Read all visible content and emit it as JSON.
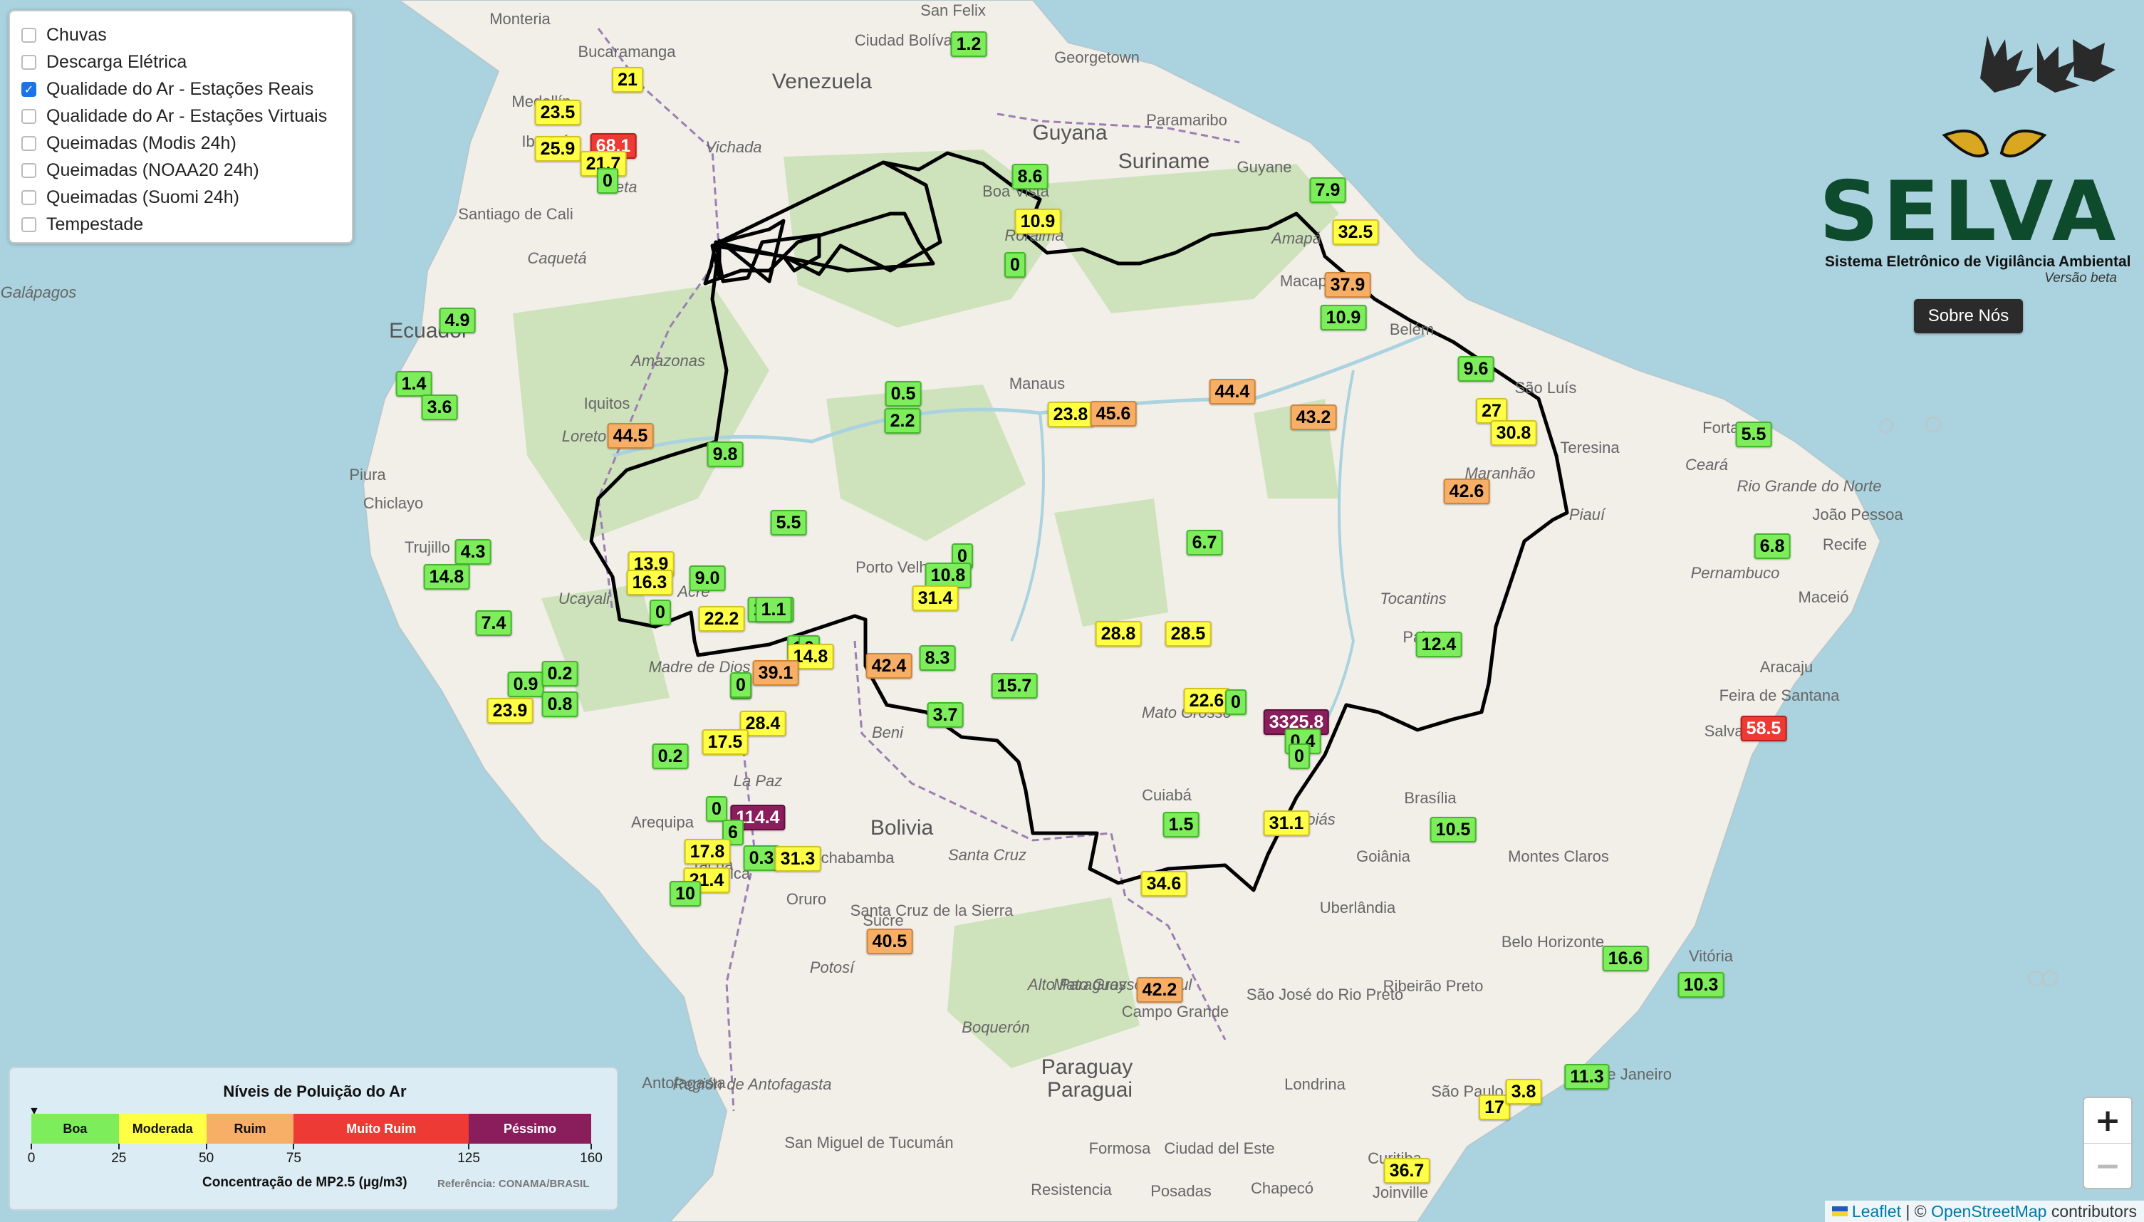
{
  "layers": [
    {
      "label": "Chuvas",
      "checked": false
    },
    {
      "label": "Descarga Elétrica",
      "checked": false
    },
    {
      "label": "Qualidade do Ar - Estações Reais",
      "checked": true
    },
    {
      "label": "Qualidade do Ar - Estações Virtuais",
      "checked": false
    },
    {
      "label": "Queimadas (Modis 24h)",
      "checked": false
    },
    {
      "label": "Queimadas (NOAA20 24h)",
      "checked": false
    },
    {
      "label": "Queimadas (Suomi 24h)",
      "checked": false
    },
    {
      "label": "Tempestade",
      "checked": false
    }
  ],
  "logo": {
    "name": "SELVA",
    "subtitle": "Sistema Eletrônico de Vigilância Ambiental",
    "version": "Versão beta",
    "icon": "selva-owl-leaves-logo"
  },
  "sobre_label": "Sobre Nós",
  "legend": {
    "title": "Níveis de Poluição do Ar",
    "categories": [
      {
        "label": "Boa",
        "color": "#7ded5c",
        "min": 0,
        "max": 25
      },
      {
        "label": "Moderada",
        "color": "#ffff45",
        "min": 25,
        "max": 50
      },
      {
        "label": "Ruim",
        "color": "#f7ae66",
        "min": 50,
        "max": 75
      },
      {
        "label": "Muito Ruim",
        "color": "#ee3a35",
        "min": 75,
        "max": 125
      },
      {
        "label": "Péssimo",
        "color": "#8a1d5c",
        "min": 125,
        "max": 160
      }
    ],
    "ticks": [
      "0",
      "25",
      "50",
      "75",
      "125",
      "160"
    ],
    "unit": "Concentração de MP2.5 (µg/m3)",
    "reference": "Referência: CONAMA/BRASIL"
  },
  "zoom": {
    "in": "+",
    "out": "−"
  },
  "attribution": {
    "leaflet": "Leaflet",
    "sep": " | © ",
    "osm": "OpenStreetMap",
    "suffix": " contributors"
  },
  "place_labels": [
    "Monteria",
    "San Felix",
    "Ciudad Bolívar",
    "Georgetown",
    "Venezuela",
    "Guyana",
    "Paramaribo",
    "Suriname",
    "Guyane",
    "Bucaramanga",
    "Medellín",
    "Ibagué",
    "Santiago de Cali",
    "Boa Vista",
    "Roraima",
    "Amapá",
    "Macapá",
    "Belém",
    "São Luís",
    "Fortaleza",
    "Teresina",
    "Ceará",
    "Maranhão",
    "Piauí",
    "Rio Grande do Norte",
    "João Pessoa",
    "Recife",
    "Pernambuco",
    "Maceió",
    "Aracaju",
    "Feira de Santana",
    "Salvador",
    "Caquetá",
    "Amazonas",
    "Ecuador",
    "Iquitos",
    "Loreto",
    "Manaus",
    "Piura",
    "Chiclayo",
    "Trujillo",
    "Ucayali",
    "Acre",
    "Porto Velho",
    "Madre de Dios",
    "Tocantins",
    "Palmas",
    "Mato Grosso",
    "Cuiabá",
    "Beni",
    "La Paz",
    "Arequipa",
    "Bolivia",
    "Santa Cruz",
    "Cochabamba",
    "Oruro",
    "Santa Cruz de la Sierra",
    "Sucre",
    "Potosí",
    "Brasília",
    "Goiás",
    "Goiânia",
    "Montes Claros",
    "Uberlândia",
    "Belo Horizonte",
    "Vitória",
    "Ribeirão Preto",
    "São José do Rio Preto",
    "Campo Grande",
    "Mato Grosso do Sul",
    "Alto Paraguay",
    "Boquerón",
    "Paraguay",
    "Paraguai",
    "Londrina",
    "Curitiba",
    "São Paulo",
    "Rio de Janeiro",
    "Joinville",
    "Antofagasta",
    "Región de Antofagasta",
    "San Miguel de Tucumán",
    "Formosa",
    "Ciudad del Este",
    "Resistencia",
    "Posadas",
    "Galápagos",
    "Chapecó",
    "Vichada",
    "Meta",
    "Tacna",
    "Arica"
  ],
  "stations": [
    {
      "value": "1.2",
      "level": "boa"
    },
    {
      "value": "21",
      "level": "mod"
    },
    {
      "value": "23.5",
      "level": "mod"
    },
    {
      "value": "25.9",
      "level": "mod"
    },
    {
      "value": "68.1",
      "level": "mr"
    },
    {
      "value": "21.7",
      "level": "mod"
    },
    {
      "value": "0",
      "level": "boa"
    },
    {
      "value": "8.6",
      "level": "boa"
    },
    {
      "value": "10.9",
      "level": "mod"
    },
    {
      "value": "0",
      "level": "boa"
    },
    {
      "value": "7.9",
      "level": "boa"
    },
    {
      "value": "32.5",
      "level": "mod"
    },
    {
      "value": "37.9",
      "level": "ruim"
    },
    {
      "value": "10.9",
      "level": "boa"
    },
    {
      "value": "4.9",
      "level": "boa"
    },
    {
      "value": "1.4",
      "level": "boa"
    },
    {
      "value": "3.6",
      "level": "boa"
    },
    {
      "value": "44.5",
      "level": "ruim"
    },
    {
      "value": "9.8",
      "level": "boa"
    },
    {
      "value": "0.5",
      "level": "boa"
    },
    {
      "value": "2.2",
      "level": "boa"
    },
    {
      "value": "23.8",
      "level": "mod"
    },
    {
      "value": "45.6",
      "level": "ruim"
    },
    {
      "value": "44.4",
      "level": "ruim"
    },
    {
      "value": "43.2",
      "level": "ruim"
    },
    {
      "value": "9.6",
      "level": "boa"
    },
    {
      "value": "27",
      "level": "mod"
    },
    {
      "value": "30.8",
      "level": "mod"
    },
    {
      "value": "5.5",
      "level": "boa"
    },
    {
      "value": "42.6",
      "level": "ruim"
    },
    {
      "value": "6.8",
      "level": "boa"
    },
    {
      "value": "6.7",
      "level": "boa"
    },
    {
      "value": "0",
      "level": "boa"
    },
    {
      "value": "10.8",
      "level": "boa"
    },
    {
      "value": "31.4",
      "level": "mod"
    },
    {
      "value": "4.3",
      "level": "boa"
    },
    {
      "value": "14.8",
      "level": "boa"
    },
    {
      "value": "13.9",
      "level": "mod"
    },
    {
      "value": "16.3",
      "level": "mod"
    },
    {
      "value": "9.0",
      "level": "boa"
    },
    {
      "value": "0",
      "level": "boa"
    },
    {
      "value": "22.2",
      "level": "mod"
    },
    {
      "value": "7.4",
      "level": "boa"
    },
    {
      "value": "12.2",
      "level": "boa"
    },
    {
      "value": "1.1",
      "level": "boa"
    },
    {
      "value": "10",
      "level": "boa"
    },
    {
      "value": "0",
      "level": "boa"
    },
    {
      "value": "14.8",
      "level": "mod"
    },
    {
      "value": "39.1",
      "level": "ruim"
    },
    {
      "value": "42.4",
      "level": "ruim"
    },
    {
      "value": "8.3",
      "level": "boa"
    },
    {
      "value": "28.8",
      "level": "mod"
    },
    {
      "value": "28.5",
      "level": "mod"
    },
    {
      "value": "12.4",
      "level": "boa"
    },
    {
      "value": "15.7",
      "level": "boa"
    },
    {
      "value": "22.6",
      "level": "mod"
    },
    {
      "value": "0",
      "level": "boa"
    },
    {
      "value": "3325.8",
      "level": "pes"
    },
    {
      "value": "0.4",
      "level": "boa"
    },
    {
      "value": "0",
      "level": "boa"
    },
    {
      "value": "58.5",
      "level": "mr"
    },
    {
      "value": "0.9",
      "level": "boa"
    },
    {
      "value": "0.2",
      "level": "boa"
    },
    {
      "value": "23.9",
      "level": "mod"
    },
    {
      "value": "0.8",
      "level": "boa"
    },
    {
      "value": "9",
      "level": "boa"
    },
    {
      "value": "0",
      "level": "boa"
    },
    {
      "value": "3.7",
      "level": "boa"
    },
    {
      "value": "28.4",
      "level": "mod"
    },
    {
      "value": "17.5",
      "level": "mod"
    },
    {
      "value": "0.2",
      "level": "boa"
    },
    {
      "value": "0",
      "level": "boa"
    },
    {
      "value": "114.4",
      "level": "pes"
    },
    {
      "value": "6",
      "level": "boa"
    },
    {
      "value": "17.8",
      "level": "mod"
    },
    {
      "value": "0.3",
      "level": "boa"
    },
    {
      "value": "31.3",
      "level": "mod"
    },
    {
      "value": "21.4",
      "level": "mod"
    },
    {
      "value": "10",
      "level": "boa"
    },
    {
      "value": "1.5",
      "level": "boa"
    },
    {
      "value": "31.1",
      "level": "mod"
    },
    {
      "value": "10.5",
      "level": "boa"
    },
    {
      "value": "34.6",
      "level": "mod"
    },
    {
      "value": "40.5",
      "level": "ruim"
    },
    {
      "value": "16.6",
      "level": "boa"
    },
    {
      "value": "10.3",
      "level": "boa"
    },
    {
      "value": "42.2",
      "level": "ruim"
    },
    {
      "value": "11.3",
      "level": "boa"
    },
    {
      "value": "17",
      "level": "mod"
    },
    {
      "value": "3.8",
      "level": "mod"
    },
    {
      "value": "36.7",
      "level": "mod"
    },
    {
      "value": "5.5",
      "level": "boa"
    }
  ]
}
